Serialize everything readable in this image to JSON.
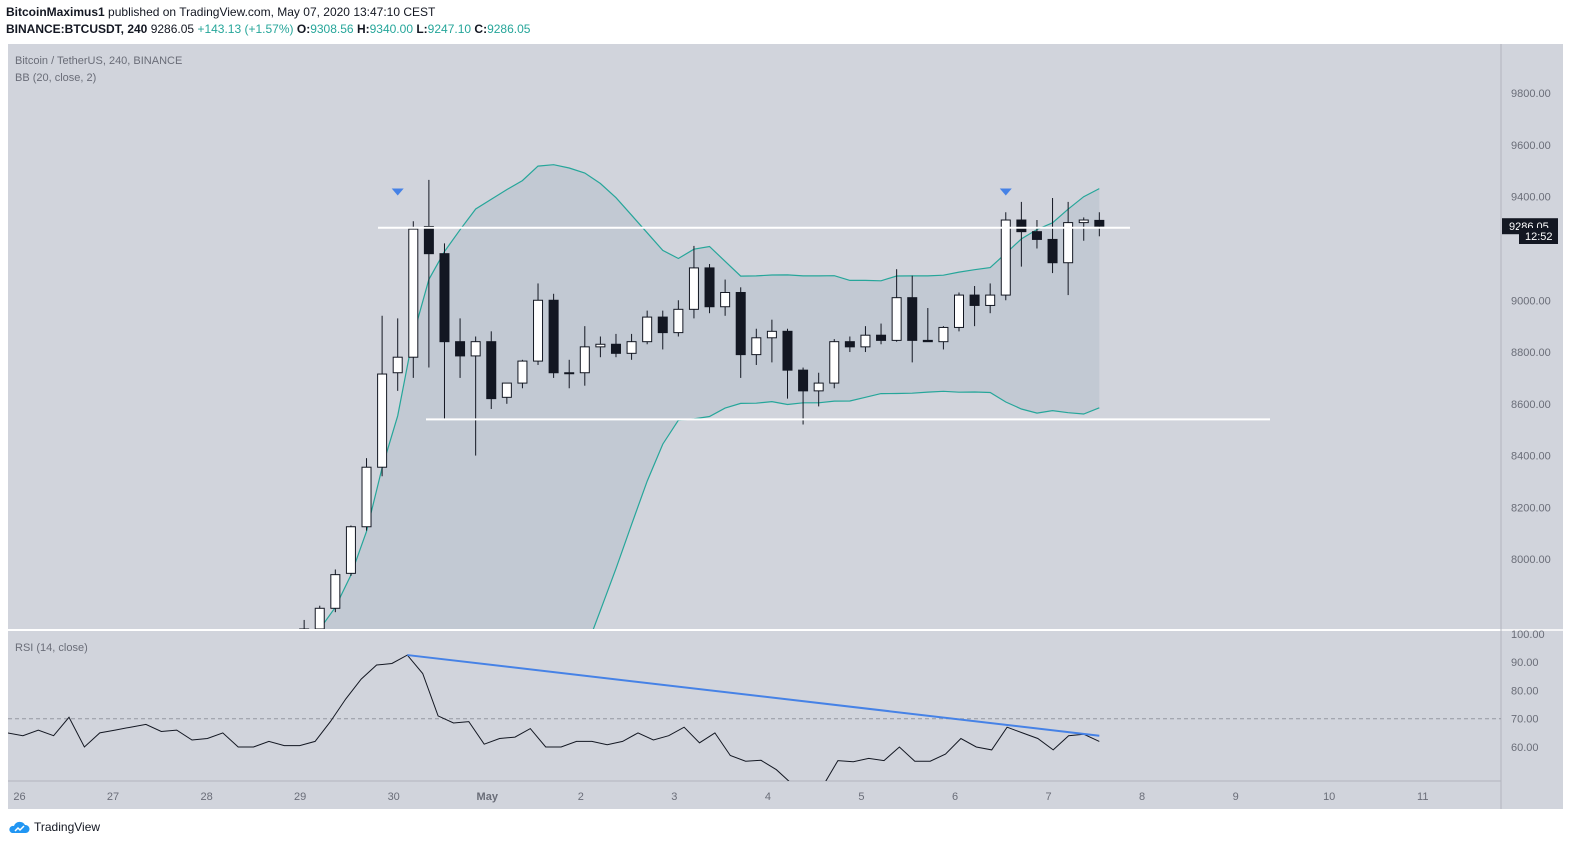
{
  "header": {
    "author": "BitcoinMaximus1",
    "published_text": "published on TradingView.com, May 07, 2020 13:47:10 CEST",
    "symbol": "BINANCE:BTCUSDT, 240",
    "last": "9286.05",
    "change": "+143.13 (+1.57%)",
    "o_label": "O:",
    "o": "9308.56",
    "h_label": "H:",
    "h": "9340.00",
    "l_label": "L:",
    "l": "9247.10",
    "c_label": "C:",
    "c": "9286.05"
  },
  "chart_data": [
    {
      "type": "candlestick",
      "title": "Bitcoin / TetherUS, 240, BINANCE",
      "indicator_label": "BB (20, close, 2)",
      "ylim": [
        7730,
        9990
      ],
      "y_ticks": [
        "9800.00",
        "9600.00",
        "9400.00",
        "9000.00",
        "8800.00",
        "8600.00",
        "8400.00",
        "8200.00",
        "8000.00"
      ],
      "x_ticks": [
        "26",
        "27",
        "28",
        "29",
        "30",
        "May",
        "2",
        "3",
        "4",
        "5",
        "6",
        "7",
        "8",
        "9",
        "10",
        "11"
      ],
      "last_price_label": "9286.05",
      "countdown_label": "12:52",
      "candles": [
        {
          "x": "29 00:00",
          "o": 7720,
          "h": 7765,
          "l": 7700,
          "c": 7730
        },
        {
          "x": "29 04:00",
          "o": 7730,
          "h": 7820,
          "l": 7700,
          "c": 7810
        },
        {
          "x": "29 08:00",
          "o": 7810,
          "h": 7960,
          "l": 7795,
          "c": 7940
        },
        {
          "x": "29 12:00",
          "o": 7945,
          "h": 8130,
          "l": 7935,
          "c": 8125
        },
        {
          "x": "29 16:00",
          "o": 8125,
          "h": 8390,
          "l": 8110,
          "c": 8355
        },
        {
          "x": "29 20:00",
          "o": 8355,
          "h": 8940,
          "l": 8320,
          "c": 8715
        },
        {
          "x": "30 00:00",
          "o": 8720,
          "h": 8930,
          "l": 8650,
          "c": 8780
        },
        {
          "x": "30 04:00",
          "o": 8780,
          "h": 9305,
          "l": 8700,
          "c": 9275
        },
        {
          "x": "30 08:00",
          "o": 9285,
          "h": 9465,
          "l": 8740,
          "c": 9180
        },
        {
          "x": "30 12:00",
          "o": 9180,
          "h": 9220,
          "l": 8540,
          "c": 8840
        },
        {
          "x": "30 16:00",
          "o": 8840,
          "h": 8930,
          "l": 8700,
          "c": 8785
        },
        {
          "x": "30 20:00",
          "o": 8785,
          "h": 8860,
          "l": 8400,
          "c": 8840
        },
        {
          "x": "01 00:00",
          "o": 8840,
          "h": 8880,
          "l": 8580,
          "c": 8620
        },
        {
          "x": "01 04:00",
          "o": 8625,
          "h": 8680,
          "l": 8600,
          "c": 8680
        },
        {
          "x": "01 08:00",
          "o": 8680,
          "h": 8770,
          "l": 8660,
          "c": 8765
        },
        {
          "x": "01 12:00",
          "o": 8765,
          "h": 9065,
          "l": 8750,
          "c": 9000
        },
        {
          "x": "01 16:00",
          "o": 9000,
          "h": 9025,
          "l": 8700,
          "c": 8720
        },
        {
          "x": "01 20:00",
          "o": 8720,
          "h": 8770,
          "l": 8660,
          "c": 8720
        },
        {
          "x": "02 00:00",
          "o": 8720,
          "h": 8900,
          "l": 8670,
          "c": 8820
        },
        {
          "x": "02 04:00",
          "o": 8820,
          "h": 8860,
          "l": 8780,
          "c": 8830
        },
        {
          "x": "02 08:00",
          "o": 8830,
          "h": 8870,
          "l": 8780,
          "c": 8795
        },
        {
          "x": "02 12:00",
          "o": 8795,
          "h": 8870,
          "l": 8770,
          "c": 8840
        },
        {
          "x": "02 16:00",
          "o": 8840,
          "h": 8960,
          "l": 8830,
          "c": 8935
        },
        {
          "x": "02 20:00",
          "o": 8935,
          "h": 8960,
          "l": 8810,
          "c": 8875
        },
        {
          "x": "03 00:00",
          "o": 8875,
          "h": 9000,
          "l": 8860,
          "c": 8965
        },
        {
          "x": "03 04:00",
          "o": 8965,
          "h": 9210,
          "l": 8930,
          "c": 9125
        },
        {
          "x": "03 08:00",
          "o": 9125,
          "h": 9140,
          "l": 8950,
          "c": 8975
        },
        {
          "x": "03 12:00",
          "o": 8975,
          "h": 9080,
          "l": 8940,
          "c": 9030
        },
        {
          "x": "03 16:00",
          "o": 9030,
          "h": 9050,
          "l": 8700,
          "c": 8790
        },
        {
          "x": "03 20:00",
          "o": 8790,
          "h": 8890,
          "l": 8750,
          "c": 8855
        },
        {
          "x": "04 00:00",
          "o": 8855,
          "h": 8925,
          "l": 8760,
          "c": 8880
        },
        {
          "x": "04 04:00",
          "o": 8880,
          "h": 8890,
          "l": 8620,
          "c": 8730
        },
        {
          "x": "04 08:00",
          "o": 8730,
          "h": 8740,
          "l": 8520,
          "c": 8650
        },
        {
          "x": "04 12:00",
          "o": 8650,
          "h": 8720,
          "l": 8590,
          "c": 8680
        },
        {
          "x": "04 16:00",
          "o": 8680,
          "h": 8850,
          "l": 8660,
          "c": 8840
        },
        {
          "x": "04 20:00",
          "o": 8840,
          "h": 8860,
          "l": 8800,
          "c": 8820
        },
        {
          "x": "05 00:00",
          "o": 8820,
          "h": 8900,
          "l": 8800,
          "c": 8865
        },
        {
          "x": "05 04:00",
          "o": 8865,
          "h": 8910,
          "l": 8830,
          "c": 8845
        },
        {
          "x": "05 08:00",
          "o": 8845,
          "h": 9120,
          "l": 8840,
          "c": 9010
        },
        {
          "x": "05 12:00",
          "o": 9010,
          "h": 9095,
          "l": 8760,
          "c": 8845
        },
        {
          "x": "05 16:00",
          "o": 8845,
          "h": 8970,
          "l": 8840,
          "c": 8840
        },
        {
          "x": "05 20:00",
          "o": 8840,
          "h": 8900,
          "l": 8810,
          "c": 8895
        },
        {
          "x": "06 00:00",
          "o": 8895,
          "h": 9030,
          "l": 8880,
          "c": 9020
        },
        {
          "x": "06 04:00",
          "o": 9020,
          "h": 9055,
          "l": 8900,
          "c": 8980
        },
        {
          "x": "06 08:00",
          "o": 8980,
          "h": 9065,
          "l": 8950,
          "c": 9020
        },
        {
          "x": "06 12:00",
          "o": 9020,
          "h": 9340,
          "l": 9000,
          "c": 9310
        },
        {
          "x": "06 16:00",
          "o": 9310,
          "h": 9380,
          "l": 9130,
          "c": 9265
        },
        {
          "x": "06 20:00",
          "o": 9265,
          "h": 9310,
          "l": 9200,
          "c": 9235
        },
        {
          "x": "07 00:00",
          "o": 9235,
          "h": 9395,
          "l": 9105,
          "c": 9145
        },
        {
          "x": "07 04:00",
          "o": 9145,
          "h": 9380,
          "l": 9020,
          "c": 9300
        },
        {
          "x": "07 08:00",
          "o": 9300,
          "h": 9320,
          "l": 9230,
          "c": 9310
        },
        {
          "x": "07 12:00",
          "o": 9308.56,
          "h": 9340,
          "l": 9247.1,
          "c": 9286.05
        }
      ],
      "resistance_level": 9280,
      "support_level": 8540
    },
    {
      "type": "line",
      "title": "RSI (14, close)",
      "ylim": [
        48,
        101
      ],
      "y_ticks": [
        "100.00",
        "90.00",
        "80.00",
        "70.00",
        "60.00"
      ],
      "reference_level": 70,
      "series": [
        {
          "values": [
            65,
            64,
            66,
            64,
            70.5,
            60,
            65,
            66,
            67,
            68,
            65.5,
            66,
            62.5,
            63,
            65,
            60,
            60,
            62,
            60.5,
            60.5,
            62,
            69,
            77,
            84,
            89,
            89.5,
            92.5,
            86,
            71,
            68.5,
            69,
            61,
            63,
            63.5,
            66.5,
            60,
            60,
            62,
            62,
            60.8,
            62,
            65,
            62.5,
            64,
            67,
            61.5,
            65,
            57,
            55,
            55.3,
            52,
            47,
            43,
            46,
            55.2,
            54.8,
            56,
            55.2,
            60,
            55,
            55,
            57.5,
            63,
            60,
            59,
            67,
            65,
            63,
            59,
            64,
            64.5,
            62
          ]
        }
      ]
    }
  ],
  "footer": {
    "brand": "TradingView"
  },
  "colors": {
    "pane_bg": "#d1d4dc",
    "bb": "#26a69a",
    "candle_up": "#ffffff",
    "candle_down": "#131722",
    "trendline": "#4682e6",
    "level_line": "#ffffff"
  }
}
